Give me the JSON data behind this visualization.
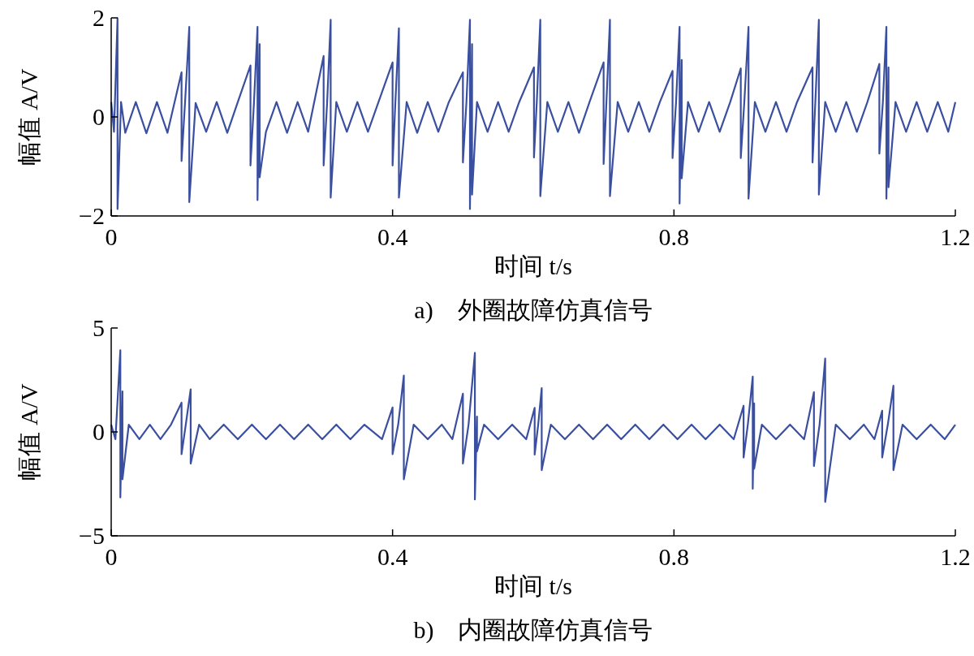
{
  "chart_data": [
    {
      "type": "line",
      "xlabel": "时间 t/s",
      "ylabel": "幅值 A/V",
      "annotations": [
        "a)　外圈故障仿真信号"
      ],
      "xlim": [
        0,
        1.2
      ],
      "xticks": [
        0,
        0.4,
        0.8,
        1.2
      ],
      "ylim": [
        -2,
        2
      ],
      "yticks": [
        -2,
        0,
        2
      ],
      "series": [
        {
          "color": "#3a4fa0",
          "x": [
            0,
            0.004,
            0.009,
            0.009,
            0.014,
            0.02,
            0.035,
            0.05,
            0.065,
            0.08,
            0.1,
            0.1,
            0.105,
            0.111,
            0.111,
            0.12,
            0.135,
            0.15,
            0.165,
            0.18,
            0.198,
            0.198,
            0.203,
            0.208,
            0.208,
            0.211,
            0.211,
            0.22,
            0.235,
            0.25,
            0.265,
            0.28,
            0.302,
            0.302,
            0.307,
            0.312,
            0.312,
            0.32,
            0.335,
            0.35,
            0.365,
            0.38,
            0.4,
            0.4,
            0.404,
            0.409,
            0.409,
            0.42,
            0.435,
            0.45,
            0.465,
            0.48,
            0.5,
            0.5,
            0.505,
            0.51,
            0.51,
            0.513,
            0.513,
            0.52,
            0.535,
            0.55,
            0.565,
            0.58,
            0.601,
            0.601,
            0.605,
            0.61,
            0.61,
            0.62,
            0.635,
            0.65,
            0.665,
            0.68,
            0.7,
            0.7,
            0.704,
            0.709,
            0.709,
            0.72,
            0.735,
            0.75,
            0.765,
            0.78,
            0.798,
            0.798,
            0.803,
            0.808,
            0.808,
            0.811,
            0.811,
            0.82,
            0.835,
            0.85,
            0.865,
            0.88,
            0.895,
            0.895,
            0.9,
            0.906,
            0.906,
            0.915,
            0.93,
            0.945,
            0.96,
            0.975,
            0.997,
            0.997,
            1.001,
            1.006,
            1.006,
            1.015,
            1.03,
            1.045,
            1.06,
            1.075,
            1.092,
            1.092,
            1.097,
            1.102,
            1.102,
            1.105,
            1.105,
            1.115,
            1.13,
            1.145,
            1.16,
            1.175,
            1.19,
            1.2
          ],
          "values": [
            0.3,
            -0.3,
            1.99,
            -1.86,
            0.3,
            -0.32,
            0.3,
            -0.33,
            0.3,
            -0.32,
            0.9,
            -0.89,
            0.3,
            1.82,
            -1.72,
            0.28,
            -0.3,
            0.3,
            -0.32,
            0.3,
            1.04,
            -0.98,
            0.3,
            1.82,
            -1.68,
            1.47,
            -1.22,
            -0.3,
            0.3,
            -0.32,
            0.3,
            -0.3,
            1.23,
            -0.98,
            0.3,
            1.96,
            -1.63,
            0.3,
            -0.3,
            0.3,
            -0.3,
            0.3,
            1.1,
            -0.98,
            0.3,
            1.79,
            -1.63,
            0.3,
            -0.32,
            0.3,
            -0.3,
            0.3,
            0.9,
            -0.92,
            0.3,
            1.96,
            -1.86,
            1.47,
            -1.57,
            0.3,
            -0.3,
            0.3,
            -0.3,
            0.3,
            1.0,
            -0.82,
            0.3,
            1.96,
            -1.6,
            0.3,
            -0.3,
            0.3,
            -0.32,
            0.3,
            1.1,
            -0.95,
            0.3,
            1.96,
            -1.6,
            0.3,
            -0.3,
            0.3,
            -0.3,
            0.3,
            0.93,
            -0.83,
            0.3,
            1.82,
            -1.75,
            1.15,
            -1.24,
            0.3,
            -0.3,
            0.3,
            -0.3,
            0.3,
            0.98,
            -0.83,
            0.3,
            1.82,
            -1.65,
            0.3,
            -0.3,
            0.3,
            -0.3,
            0.3,
            1.0,
            -0.92,
            0.3,
            1.96,
            -1.57,
            0.3,
            -0.3,
            0.3,
            -0.3,
            0.3,
            1.07,
            -0.74,
            0.3,
            1.82,
            -1.65,
            1.0,
            -1.42,
            0.3,
            -0.3,
            0.3,
            -0.3,
            0.3,
            -0.3,
            0.3
          ]
        }
      ]
    },
    {
      "type": "line",
      "xlabel": "时间 t/s",
      "ylabel": "幅值 A/V",
      "annotations": [
        "b)　内圈故障仿真信号"
      ],
      "xlim": [
        0,
        1.2
      ],
      "xticks": [
        0,
        0.4,
        0.8,
        1.2
      ],
      "ylim": [
        -5,
        5
      ],
      "yticks": [
        -5,
        0,
        5
      ],
      "series": [
        {
          "color": "#3a4fa0",
          "x": [
            0,
            0.006,
            0.013,
            0.013,
            0.016,
            0.016,
            0.025,
            0.04,
            0.055,
            0.07,
            0.085,
            0.1,
            0.1,
            0.106,
            0.113,
            0.113,
            0.125,
            0.14,
            0.16,
            0.18,
            0.2,
            0.22,
            0.24,
            0.26,
            0.28,
            0.3,
            0.32,
            0.34,
            0.36,
            0.385,
            0.4,
            0.4,
            0.408,
            0.416,
            0.416,
            0.43,
            0.45,
            0.47,
            0.485,
            0.5,
            0.5,
            0.508,
            0.517,
            0.517,
            0.52,
            0.52,
            0.53,
            0.55,
            0.57,
            0.59,
            0.602,
            0.602,
            0.607,
            0.612,
            0.612,
            0.625,
            0.645,
            0.665,
            0.685,
            0.705,
            0.725,
            0.745,
            0.765,
            0.785,
            0.805,
            0.825,
            0.845,
            0.865,
            0.885,
            0.899,
            0.899,
            0.905,
            0.912,
            0.912,
            0.914,
            0.914,
            0.925,
            0.945,
            0.965,
            0.985,
            0.999,
            0.999,
            1.007,
            1.015,
            1.015,
            1.03,
            1.05,
            1.07,
            1.085,
            1.096,
            1.096,
            1.104,
            1.112,
            1.112,
            1.125,
            1.145,
            1.165,
            1.185,
            1.2
          ],
          "values": [
            0.35,
            -0.35,
            3.93,
            -3.15,
            1.95,
            -2.28,
            0.35,
            -0.35,
            0.35,
            -0.35,
            0.35,
            1.41,
            -1.07,
            0.35,
            2.05,
            -1.52,
            0.35,
            -0.35,
            0.35,
            -0.35,
            0.35,
            -0.35,
            0.35,
            -0.35,
            0.35,
            -0.35,
            0.35,
            -0.35,
            0.35,
            -0.35,
            1.18,
            -1.07,
            0.35,
            2.71,
            -2.28,
            0.35,
            -0.35,
            0.35,
            -0.35,
            1.84,
            -1.52,
            0.35,
            3.8,
            -3.25,
            0.74,
            -0.94,
            0.35,
            -0.35,
            0.35,
            -0.35,
            1.16,
            -1.09,
            0.35,
            2.11,
            -1.84,
            0.35,
            -0.35,
            0.35,
            -0.35,
            0.35,
            -0.35,
            0.35,
            -0.35,
            0.35,
            -0.35,
            0.35,
            -0.35,
            0.35,
            -0.35,
            1.26,
            -1.23,
            0.35,
            2.66,
            -2.73,
            1.37,
            -1.77,
            0.35,
            -0.35,
            0.35,
            -0.35,
            1.91,
            -1.64,
            0.35,
            3.53,
            -3.37,
            0.35,
            -0.35,
            0.35,
            -0.35,
            1.02,
            -1.23,
            0.35,
            2.22,
            -1.84,
            0.35,
            -0.35,
            0.35,
            -0.35,
            0.35
          ]
        }
      ]
    }
  ]
}
